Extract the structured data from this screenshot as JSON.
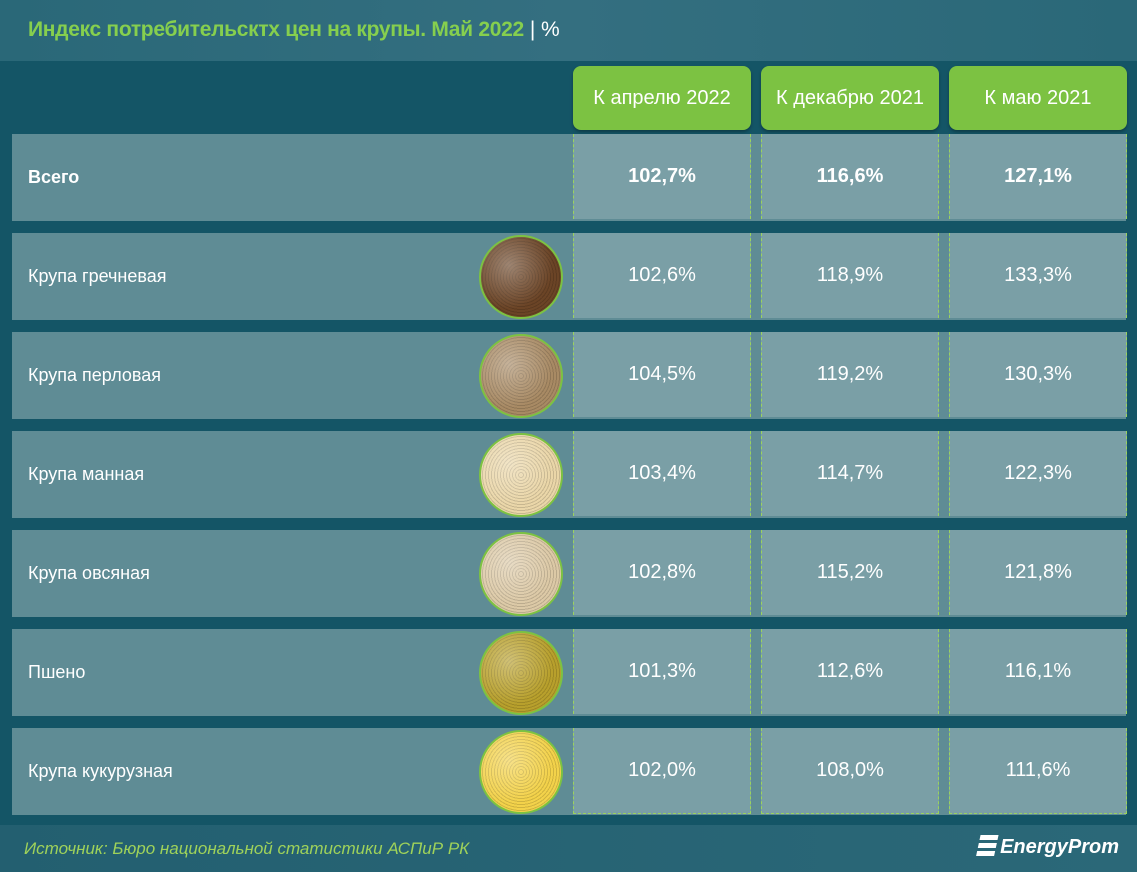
{
  "title": "Индекс потребительсктх цен на крупы. Май 2022",
  "unit": "%",
  "chart_data": {
    "type": "table",
    "title": "Индекс потребительсктх цен на крупы. Май 2022",
    "unit": "%",
    "columns": [
      "К апрелю 2022",
      "К декабрю 2021",
      "К маю 2021"
    ],
    "rows": [
      {
        "label": "Всего",
        "values": [
          "102,7%",
          "116,6%",
          "127,1%"
        ],
        "grain_color": ""
      },
      {
        "label": "Крупа гречневая",
        "values": [
          "102,6%",
          "118,9%",
          "133,3%"
        ],
        "grain_color": "#6b4426"
      },
      {
        "label": "Крупа перловая",
        "values": [
          "104,5%",
          "119,2%",
          "130,3%"
        ],
        "grain_color": "#a88a64"
      },
      {
        "label": "Крупа манная",
        "values": [
          "103,4%",
          "114,7%",
          "122,3%"
        ],
        "grain_color": "#ead6a8"
      },
      {
        "label": "Крупа овсяная",
        "values": [
          "102,8%",
          "115,2%",
          "121,8%"
        ],
        "grain_color": "#dcc9a6"
      },
      {
        "label": "Пшено",
        "values": [
          "101,3%",
          "112,6%",
          "116,1%"
        ],
        "grain_color": "#b8a02c"
      },
      {
        "label": "Крупа кукурузная",
        "values": [
          "102,0%",
          "108,0%",
          "111,6%"
        ],
        "grain_color": "#f3d24a"
      }
    ]
  },
  "footer": {
    "source": "Источник: Бюро национальной статистики АСПиР РК",
    "logo": "EnergyProm"
  },
  "colors": {
    "accent": "#7cc242",
    "background": "#145566",
    "row": "#5f8c95",
    "cell": "#7a9fa6"
  }
}
